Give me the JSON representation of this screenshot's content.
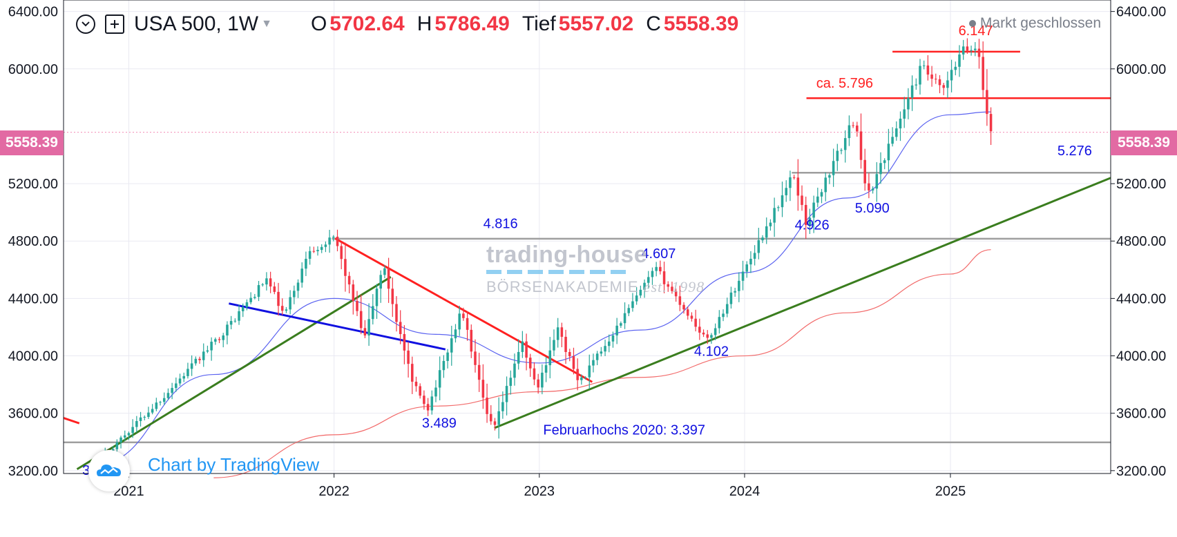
{
  "header": {
    "symbol": "USA 500, 1W",
    "open_label": "O",
    "open": "5702.64",
    "high_label": "H",
    "high": "5786.49",
    "low_label": "Tief",
    "low": "5557.02",
    "close_label": "C",
    "close": "5558.39",
    "status": "Markt geschlossen"
  },
  "price_badge": "5558.39",
  "watermark": {
    "line1": "trading-house",
    "line2": "BÖRSENAKADEMIE",
    "line3": "est. 1998"
  },
  "attribution": "Chart by TradingView",
  "colors": {
    "up": "#26a69a",
    "down": "#f23645",
    "trend_up": "#3a7d1e",
    "trend_down": "#ff2020",
    "blue_line": "#1010e0",
    "ma_fast": "#5a62f0",
    "ma_slow": "#f26a6a",
    "hline": "#9e9e9e",
    "badge": "#e26aa3",
    "label_blue": "#1010e0"
  },
  "chart_data": {
    "type": "candlestick",
    "timeframe": "1W",
    "x_axis": {
      "type": "date",
      "range": [
        "2020-09-07",
        "2025-10-13"
      ],
      "ticks": [
        "2021",
        "2022",
        "2023",
        "2024",
        "2025"
      ]
    },
    "y_axis": {
      "range": [
        3180,
        6480
      ],
      "ticks": [
        "3200.00",
        "3600.00",
        "4000.00",
        "4400.00",
        "4800.00",
        "5200.00",
        "6000.00",
        "6400.00"
      ]
    },
    "grid": true,
    "last_close": 5558.39,
    "key_points": [
      {
        "date": "2020-10-30",
        "price": 3233
      },
      {
        "date": "2021-03-05",
        "price": 3723
      },
      {
        "date": "2021-06-18",
        "price": 4164
      },
      {
        "date": "2021-09-03",
        "price": 4537
      },
      {
        "date": "2021-10-04",
        "price": 4278
      },
      {
        "date": "2021-11-19",
        "price": 4740
      },
      {
        "date": "2022-01-03",
        "price": 4816
      },
      {
        "date": "2022-02-24",
        "price": 4114
      },
      {
        "date": "2022-03-29",
        "price": 4637
      },
      {
        "date": "2022-05-20",
        "price": 3810
      },
      {
        "date": "2022-06-17",
        "price": 3637
      },
      {
        "date": "2022-08-16",
        "price": 4325
      },
      {
        "date": "2022-09-30",
        "price": 3580
      },
      {
        "date": "2022-10-13",
        "price": 3491
      },
      {
        "date": "2022-11-30",
        "price": 4100
      },
      {
        "date": "2022-12-28",
        "price": 3764
      },
      {
        "date": "2023-02-02",
        "price": 4195
      },
      {
        "date": "2023-03-13",
        "price": 3808
      },
      {
        "date": "2023-07-27",
        "price": 4607
      },
      {
        "date": "2023-10-27",
        "price": 4102
      },
      {
        "date": "2024-03-28",
        "price": 5264
      },
      {
        "date": "2024-04-19",
        "price": 4926
      },
      {
        "date": "2024-07-16",
        "price": 5669
      },
      {
        "date": "2024-08-05",
        "price": 5090
      },
      {
        "date": "2024-11-11",
        "price": 6017
      },
      {
        "date": "2024-12-18",
        "price": 5837
      },
      {
        "date": "2025-01-23",
        "price": 6128
      },
      {
        "date": "2025-02-19",
        "price": 6147
      },
      {
        "date": "2025-03-07",
        "price": 5670
      },
      {
        "date": "2025-03-14",
        "price": 5558.39
      }
    ],
    "moving_averages": [
      {
        "color": "#5a62f0",
        "points": [
          [
            "2020-11-01",
            3240
          ],
          [
            "2021-06-01",
            3870
          ],
          [
            "2022-01-01",
            4400
          ],
          [
            "2022-07-01",
            4150
          ],
          [
            "2023-01-01",
            3950
          ],
          [
            "2023-07-01",
            4180
          ],
          [
            "2024-01-01",
            4580
          ],
          [
            "2024-07-01",
            5100
          ],
          [
            "2025-01-01",
            5680
          ],
          [
            "2025-03-14",
            5700
          ]
        ]
      },
      {
        "color": "#f26a6a",
        "points": [
          [
            "2021-06-01",
            3150
          ],
          [
            "2022-01-01",
            3450
          ],
          [
            "2022-07-01",
            3650
          ],
          [
            "2023-01-01",
            3750
          ],
          [
            "2023-07-01",
            3850
          ],
          [
            "2024-01-01",
            4000
          ],
          [
            "2024-07-01",
            4300
          ],
          [
            "2025-01-01",
            4570
          ],
          [
            "2025-03-14",
            4740
          ]
        ]
      }
    ],
    "trendlines": [
      {
        "color": "#3a7d1e",
        "from": [
          "2020-10-01",
          3210
        ],
        "to": [
          "2022-04-12",
          4550
        ]
      },
      {
        "color": "#3a7d1e",
        "from": [
          "2022-10-13",
          3497
        ],
        "to": [
          "2025-10-13",
          5240
        ]
      },
      {
        "color": "#ff2020",
        "from": [
          "2022-01-03",
          4818
        ],
        "to": [
          "2023-04-05",
          3818
        ]
      },
      {
        "color": "#1010e0",
        "from": [
          "2021-06-28",
          4365
        ],
        "to": [
          "2022-07-18",
          4045
        ]
      },
      {
        "color": "#ff2020",
        "from": [
          "2020-09-07",
          3567
        ],
        "to": [
          "2020-10-05",
          3530
        ]
      }
    ],
    "horizontal_levels": [
      {
        "price": 6120,
        "from": "2024-09-20",
        "to": "2025-05-05",
        "color": "#ff2020"
      },
      {
        "price": 5796,
        "from": "2024-04-20",
        "to": "2025-10-13",
        "color": "#ff2020",
        "label": "ca. 5.796"
      },
      {
        "price": 5276,
        "from": "2024-03-25",
        "to": "2025-10-13",
        "color": "#9e9e9e",
        "label": "5.276"
      },
      {
        "price": 4816,
        "from": "2021-12-28",
        "to": "2025-10-13",
        "color": "#9e9e9e",
        "label": "4.816"
      },
      {
        "price": 3397,
        "from": "2020-09-07",
        "to": "2025-10-13",
        "color": "#9e9e9e",
        "label": "Februarhochs 2020: 3.397"
      }
    ],
    "annotations": [
      {
        "text": "6.147",
        "date": "2025-02-15",
        "price": 6235,
        "color": "#ff2020"
      },
      {
        "text": "ca. 5.796",
        "date": "2024-06-27",
        "price": 5868,
        "color": "#ff2020"
      },
      {
        "text": "5.276",
        "date": "2025-08-10",
        "price": 5397,
        "color": "#1010e0"
      },
      {
        "text": "5.090",
        "date": "2024-08-15",
        "price": 4998,
        "color": "#1010e0"
      },
      {
        "text": "4.926",
        "date": "2024-04-30",
        "price": 4880,
        "color": "#1010e0"
      },
      {
        "text": "4.816",
        "date": "2022-10-24",
        "price": 4889,
        "color": "#1010e0"
      },
      {
        "text": "4.607",
        "date": "2023-08-01",
        "price": 4680,
        "color": "#1010e0"
      },
      {
        "text": "4.102",
        "date": "2023-11-03",
        "price": 4000,
        "color": "#1010e0"
      },
      {
        "text": "3.489",
        "date": "2022-07-07",
        "price": 3500,
        "color": "#1010e0"
      },
      {
        "text": "Februarhochs 2020: 3.397",
        "date": "2023-06-01",
        "price": 3451,
        "color": "#1010e0"
      },
      {
        "text": "3.233",
        "date": "2020-11-10",
        "price": 3170,
        "color": "#1010e0"
      }
    ]
  }
}
